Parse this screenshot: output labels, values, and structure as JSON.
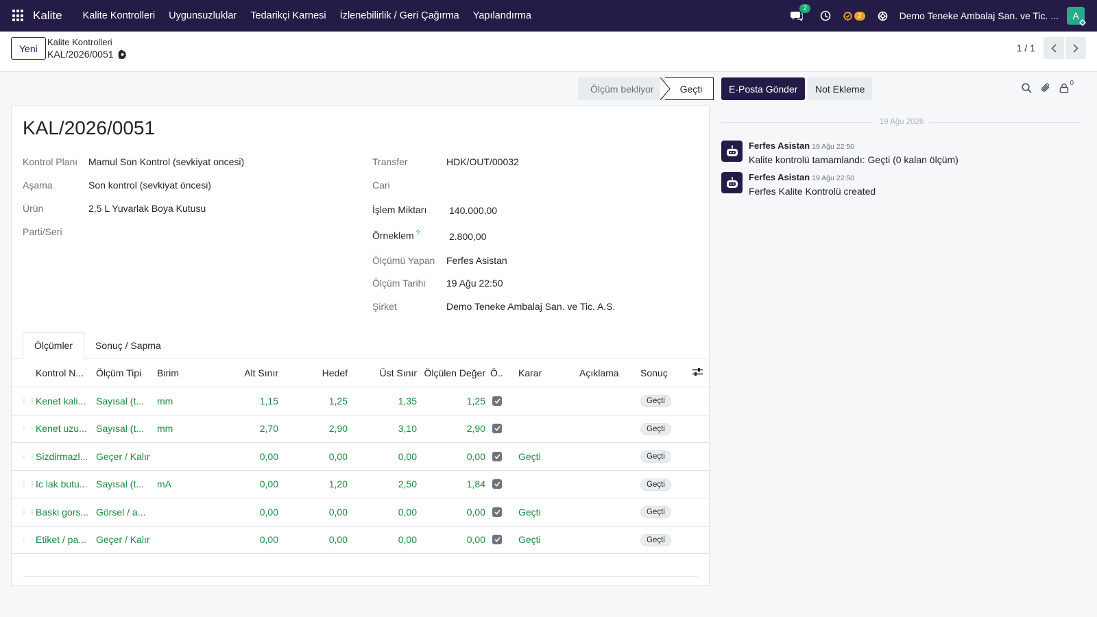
{
  "navbar": {
    "app_name": "Kalite",
    "menu": [
      "Kalite Kontrolleri",
      "Uygunsuzluklar",
      "Tedarikçi Karnesi",
      "İzlenebilirlik / Geri Çağırma",
      "Yapılandırma"
    ],
    "messages_count": "2",
    "activities_count": "2",
    "company": "Demo Teneke Ambalaj San. ve Tic. ...",
    "user_initial": "A"
  },
  "control_panel": {
    "new_label": "Yeni",
    "breadcrumb_parent": "Kalite Kontrolleri",
    "breadcrumb_current": "KAL/2026/0051",
    "pager": "1 / 1"
  },
  "statusbar": {
    "steps": [
      "Ölçüm bekliyor",
      "Geçti"
    ]
  },
  "form": {
    "title": "KAL/2026/0051",
    "left_fields": [
      {
        "label": "Kontrol Planı",
        "value": "Mamul Son Kontrol (sevkiyat oncesi)"
      },
      {
        "label": "Aşama",
        "value": "Son kontrol (sevkiyat öncesi)"
      },
      {
        "label": "Ürün",
        "value": "2,5 L Yuvarlak Boya Kutusu"
      },
      {
        "label": "Parti/Seri",
        "value": ""
      }
    ],
    "right_fields": [
      {
        "label": "Transfer",
        "value": "HDK/OUT/00032"
      },
      {
        "label": "Cari",
        "value": ""
      },
      {
        "label": "İşlem Miktarı",
        "value": "140.000,00"
      },
      {
        "label": "Örneklem",
        "value": "2.800,00",
        "help": "?"
      },
      {
        "label": "Ölçümü Yapan",
        "value": "Ferfes Asistan"
      },
      {
        "label": "Ölçüm Tarihi",
        "value": "19 Ağu 22:50"
      },
      {
        "label": "Şirket",
        "value": "Demo Teneke Ambalaj San. ve Tic. A.S."
      }
    ],
    "tabs": [
      "Ölçümler",
      "Sonuç / Sapma"
    ]
  },
  "table": {
    "headers": [
      "Kontrol N...",
      "Ölçüm Tipi",
      "Birim",
      "Alt Sınır",
      "Hedef",
      "Üst Sınır",
      "Ölçülen Değer",
      "Ö..",
      "Karar",
      "Açıklama",
      "Sonuç"
    ],
    "rows": [
      {
        "name": "Kenet kali...",
        "type": "Sayısal (t...",
        "unit": "mm",
        "min": "1,15",
        "target": "1,25",
        "max": "1,35",
        "measured": "1,25",
        "decision": "",
        "note": "",
        "result": "Geçti"
      },
      {
        "name": "Kenet uzu...",
        "type": "Sayısal (t...",
        "unit": "mm",
        "min": "2,70",
        "target": "2,90",
        "max": "3,10",
        "measured": "2,90",
        "decision": "",
        "note": "",
        "result": "Geçti"
      },
      {
        "name": "Sizdirmazl...",
        "type": "Geçer / Kalır",
        "unit": "",
        "min": "0,00",
        "target": "0,00",
        "max": "0,00",
        "measured": "0,00",
        "decision": "Geçti",
        "note": "",
        "result": "Geçti"
      },
      {
        "name": "Ic lak butu...",
        "type": "Sayısal (t...",
        "unit": "mA",
        "min": "0,00",
        "target": "1,20",
        "max": "2,50",
        "measured": "1,84",
        "decision": "",
        "note": "",
        "result": "Geçti"
      },
      {
        "name": "Baski gors...",
        "type": "Görsel / a...",
        "unit": "",
        "min": "0,00",
        "target": "0,00",
        "max": "0,00",
        "measured": "0,00",
        "decision": "Geçti",
        "note": "",
        "result": "Geçti"
      },
      {
        "name": "Etiket / pa...",
        "type": "Geçer / Kalır",
        "unit": "",
        "min": "0,00",
        "target": "0,00",
        "max": "0,00",
        "measured": "0,00",
        "decision": "Geçti",
        "note": "",
        "result": "Geçti"
      }
    ]
  },
  "chatter": {
    "send_email": "E-Posta Gönder",
    "log_note": "Not Ekleme",
    "followers_count": "0",
    "date_separator": "19 Ağu 2026",
    "messages": [
      {
        "author": "Ferfes Asistan",
        "date": "19 Ağu 22:50",
        "text": "Kalite kontrolü tamamlandı: Geçti (0 kalan ölçüm)"
      },
      {
        "author": "Ferfes Asistan",
        "date": "19 Ağu 22:50",
        "text": "Ferfes Kalite Kontrolü created"
      }
    ]
  }
}
